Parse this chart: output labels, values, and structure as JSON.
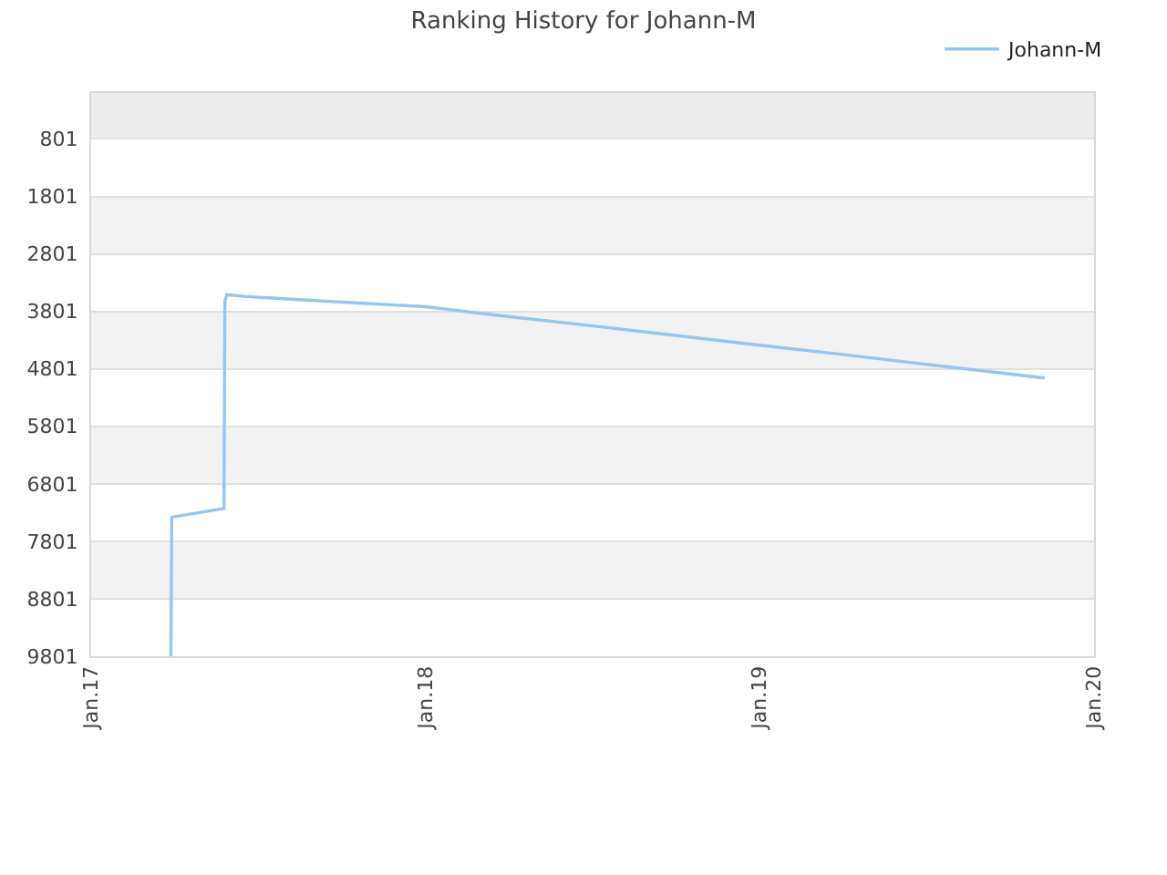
{
  "chart_data": {
    "type": "line",
    "title": "Ranking History for Johann-M",
    "x": [
      "2017-03-29",
      "2017-03-30",
      "2017-05-26",
      "2017-05-27",
      "2017-05-29",
      "2017-06-17",
      "2017-07-18",
      "2017-08-20",
      "2017-09-22",
      "2017-10-26",
      "2017-11-28",
      "2018-01-01",
      "2018-04-01",
      "2018-07-01",
      "2018-10-01",
      "2019-01-01",
      "2019-04-01",
      "2019-07-01",
      "2019-10-01",
      "2019-11-08"
    ],
    "series": [
      {
        "name": "Johann-M",
        "color": "#95c5f0",
        "values": [
          9800,
          7380,
          7230,
          3620,
          3510,
          3540,
          3570,
          3600,
          3630,
          3660,
          3690,
          3720,
          3890,
          4050,
          4220,
          4390,
          4550,
          4720,
          4890,
          4960
        ]
      }
    ],
    "xlim": [
      "2017-01-01",
      "2020-01-01"
    ],
    "xticks": [
      {
        "value": "2017-01-01",
        "label": "Jan.17"
      },
      {
        "value": "2018-01-01",
        "label": "Jan.18"
      },
      {
        "value": "2019-01-01",
        "label": "Jan.19"
      },
      {
        "value": "2020-01-01",
        "label": "Jan.20"
      }
    ],
    "ylim": [
      9801,
      1
    ],
    "yticks": [
      801,
      1801,
      2801,
      3801,
      4801,
      5801,
      6801,
      7801,
      8801,
      9801
    ],
    "bands": [
      {
        "axis": "y",
        "from": 1,
        "to": 801,
        "color": "#ededed"
      },
      {
        "axis": "y",
        "from": 1801,
        "to": 2801,
        "color": "#f2f2f2"
      },
      {
        "axis": "y",
        "from": 3801,
        "to": 4801,
        "color": "#f2f2f2"
      },
      {
        "axis": "y",
        "from": 5801,
        "to": 6801,
        "color": "#f2f2f2"
      },
      {
        "axis": "y",
        "from": 7801,
        "to": 8801,
        "color": "#f2f2f2"
      }
    ],
    "grid": "y",
    "legend": "top right"
  }
}
